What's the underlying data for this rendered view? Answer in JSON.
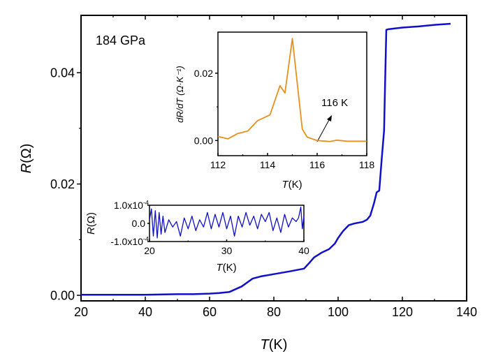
{
  "chart_data": [
    {
      "type": "line",
      "annotation": "184 GPa",
      "xlabel_italic": "T",
      "xlabel_unit": "(K)",
      "ylabel_italic": "R",
      "ylabel_unit": "(Ω)",
      "xlim": [
        20,
        140
      ],
      "ylim": [
        -0.001,
        0.0503
      ],
      "xticks": [
        20,
        40,
        60,
        80,
        100,
        120,
        140
      ],
      "xtick_labels": [
        "20",
        "40",
        "60",
        "80",
        "100",
        "120",
        "140"
      ],
      "yticks": [
        0.0,
        0.02,
        0.04
      ],
      "ytick_labels": [
        "0.00",
        "0.02",
        "0.04"
      ],
      "grid": false,
      "color": "#1010c8",
      "series": [
        {
          "x": [
            20,
            30,
            40,
            50,
            55,
            60,
            63,
            66.2,
            70,
            73.4,
            76,
            80,
            85,
            89.4,
            91,
            92.5,
            95,
            97.2,
            99,
            100,
            101.5,
            103.3,
            105,
            107.7,
            109,
            110,
            111.2,
            112,
            112.8,
            113.5,
            114.3,
            114.7,
            115,
            115.6,
            120,
            125,
            130,
            135
          ],
          "y": [
            0.0001,
            0.0001,
            0.0001,
            0.0002,
            0.0002,
            0.0003,
            0.0004,
            0.0006,
            0.0016,
            0.003,
            0.0034,
            0.0038,
            0.0043,
            0.0048,
            0.0058,
            0.0068,
            0.0077,
            0.0083,
            0.0093,
            0.0103,
            0.0115,
            0.0126,
            0.0129,
            0.0132,
            0.0136,
            0.0143,
            0.0166,
            0.0185,
            0.0188,
            0.024,
            0.0296,
            0.04,
            0.0477,
            0.0478,
            0.0481,
            0.0483,
            0.0486,
            0.0488
          ]
        }
      ]
    },
    {
      "type": "line",
      "xlabel_italic": "T",
      "xlabel_unit": "(K)",
      "ylabel": "dR/dT (Ω·K⁻¹)",
      "xlim": [
        112,
        118
      ],
      "ylim": [
        -0.0045,
        0.0322
      ],
      "xticks": [
        112,
        114,
        116,
        118
      ],
      "xtick_labels": [
        "112",
        "114",
        "116",
        "118"
      ],
      "yticks": [
        0.0,
        0.02
      ],
      "ytick_labels": [
        "0.00",
        "0.02"
      ],
      "color": "#e8901c",
      "annotation": "116 K",
      "annotation_arrow_to": [
        116,
        0.0
      ],
      "series": [
        {
          "x": [
            112,
            112.4,
            112.8,
            113.2,
            113.6,
            114.1,
            114.5,
            114.7,
            115.0,
            115.4,
            115.6,
            116.0,
            116.5,
            116.8,
            117.2,
            118
          ],
          "y": [
            0.0012,
            0.0005,
            0.0021,
            0.0028,
            0.0059,
            0.0076,
            0.0163,
            0.0141,
            0.0303,
            0.0034,
            0.001,
            0.0,
            -0.0003,
            0.0001,
            -0.0002,
            -0.0002
          ]
        }
      ]
    },
    {
      "type": "line",
      "xlabel_italic": "T",
      "xlabel_unit": "(K)",
      "ylabel_italic": "R",
      "ylabel_unit": "(Ω)",
      "xlim": [
        20,
        40
      ],
      "ylim": [
        -0.0001,
        0.0001
      ],
      "xticks": [
        20,
        30,
        40
      ],
      "xtick_labels": [
        "20",
        "30",
        "40"
      ],
      "ytick_labels": [
        "1.0x10",
        "0.0",
        "-1.0x10"
      ],
      "ytick_exp": "-4",
      "yticks": [
        0.0001,
        0.0,
        -0.0001
      ],
      "color": "#1010c8",
      "series": [
        {
          "x": [
            20,
            20.25,
            20.5,
            20.75,
            21,
            21.25,
            21.5,
            21.75,
            22,
            22.5,
            23,
            23.5,
            24,
            24.5,
            25,
            25.5,
            26,
            26.5,
            27,
            27.5,
            28,
            28.5,
            29,
            29.5,
            30,
            30.5,
            31,
            31.5,
            32,
            32.5,
            33,
            33.5,
            34,
            34.5,
            35,
            35.5,
            36,
            36.5,
            37,
            37.5,
            38,
            38.5,
            39,
            39.3,
            39.6,
            39.8,
            40
          ],
          "y": [
            2e-05,
            8e-05,
            -7e-05,
            7e-05,
            -8e-05,
            6e-05,
            -6e-05,
            4e-05,
            -5e-05,
            2e-05,
            -2e-05,
            1e-05,
            -7e-05,
            3e-05,
            -3e-05,
            4e-05,
            -4e-05,
            2e-05,
            -2e-05,
            6e-05,
            -3e-05,
            5e-05,
            -2e-05,
            6e-05,
            -3e-05,
            4e-05,
            -7e-05,
            4e-05,
            -2e-05,
            6e-05,
            -1e-05,
            4e-05,
            -3e-05,
            5e-05,
            1e-05,
            6e-05,
            -4e-05,
            3e-05,
            -5e-05,
            5e-05,
            -2e-05,
            3e-05,
            1e-05,
            3e-05,
            9e-05,
            -3e-05,
            4e-05
          ]
        }
      ]
    }
  ]
}
